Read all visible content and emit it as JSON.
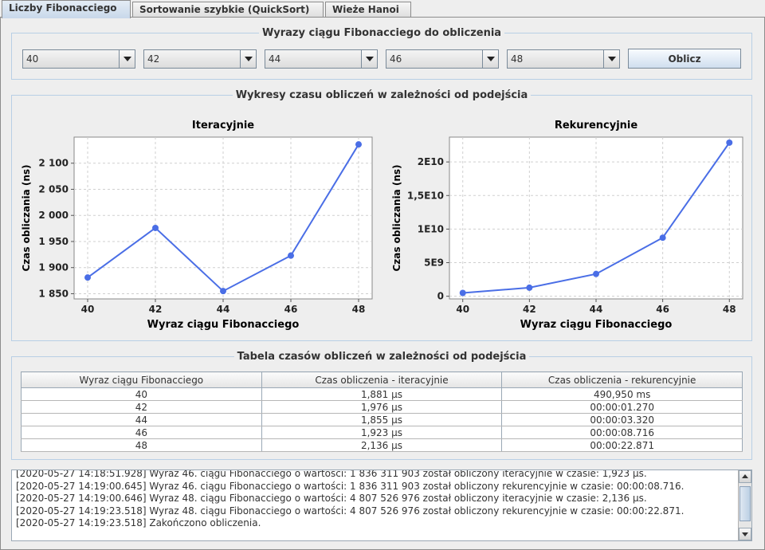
{
  "tabs": [
    {
      "label": "Liczby Fibonacciego",
      "active": true
    },
    {
      "label": "Sortowanie szybkie (QuickSort)",
      "active": false
    },
    {
      "label": "Wieże Hanoi",
      "active": false
    }
  ],
  "input_group": {
    "title": "Wyrazy ciągu Fibonacciego do obliczenia",
    "combos": [
      "40",
      "42",
      "44",
      "46",
      "48"
    ],
    "button_label": "Oblicz"
  },
  "charts_group": {
    "title": "Wykresy czasu obliczeń w zależności od podejścia"
  },
  "chart_data": [
    {
      "type": "line",
      "title": "Iteracyjnie",
      "xlabel": "Wyraz ciągu Fibonacciego",
      "ylabel": "Czas obliczania (ns)",
      "x": [
        40,
        42,
        44,
        46,
        48
      ],
      "series": [
        {
          "values": [
            1881,
            1976,
            1855,
            1923,
            2136
          ]
        }
      ],
      "xlim": [
        39.6,
        48.4
      ],
      "ylim": [
        1840,
        2150
      ],
      "xticks": [
        {
          "v": 40,
          "label": "40"
        },
        {
          "v": 42,
          "label": "42"
        },
        {
          "v": 44,
          "label": "44"
        },
        {
          "v": 46,
          "label": "46"
        },
        {
          "v": 48,
          "label": "48"
        }
      ],
      "yticks": [
        {
          "v": 1850,
          "label": "1 850"
        },
        {
          "v": 1900,
          "label": "1 900"
        },
        {
          "v": 1950,
          "label": "1 950"
        },
        {
          "v": 2000,
          "label": "2 000"
        },
        {
          "v": 2050,
          "label": "2 050"
        },
        {
          "v": 2100,
          "label": "2 100"
        }
      ],
      "grid": true,
      "color": "#4a6ee6"
    },
    {
      "type": "line",
      "title": "Rekurencyjnie",
      "xlabel": "Wyraz ciągu Fibonacciego",
      "ylabel": "Czas obliczania (ns)",
      "x": [
        40,
        42,
        44,
        46,
        48
      ],
      "series": [
        {
          "values": [
            490950000,
            1270000000,
            3320000000,
            8716000000,
            22871000000
          ]
        }
      ],
      "xlim": [
        39.6,
        48.4
      ],
      "ylim": [
        -400000000,
        23700000000
      ],
      "xticks": [
        {
          "v": 40,
          "label": "40"
        },
        {
          "v": 42,
          "label": "42"
        },
        {
          "v": 44,
          "label": "44"
        },
        {
          "v": 46,
          "label": "46"
        },
        {
          "v": 48,
          "label": "48"
        }
      ],
      "yticks": [
        {
          "v": 0,
          "label": "0"
        },
        {
          "v": 5000000000,
          "label": "5E9"
        },
        {
          "v": 10000000000,
          "label": "1E10"
        },
        {
          "v": 15000000000,
          "label": "1,5E10"
        },
        {
          "v": 20000000000,
          "label": "2E10"
        }
      ],
      "grid": true,
      "color": "#4a6ee6"
    }
  ],
  "table_group": {
    "title": "Tabela czasów obliczeń w zależności od podejścia",
    "headers": [
      "Wyraz ciągu Fibonacciego",
      "Czas obliczenia - iteracyjnie",
      "Czas obliczenia - rekurencyjnie"
    ],
    "rows": [
      [
        "40",
        "1,881 µs",
        "490,950 ms"
      ],
      [
        "42",
        "1,976 µs",
        "00:00:01.270"
      ],
      [
        "44",
        "1,855 µs",
        "00:00:03.320"
      ],
      [
        "46",
        "1,923 µs",
        "00:00:08.716"
      ],
      [
        "48",
        "2,136 µs",
        "00:00:22.871"
      ]
    ]
  },
  "log": {
    "lines": [
      "[2020-05-27 14:18:51.928] Wyraz 46. ciągu Fibonacciego o wartości: 1 836 311 903 został obliczony iteracyjnie w czasie: 1,923 µs.",
      "[2020-05-27 14:19:00.645] Wyraz 46. ciągu Fibonacciego o wartości: 1 836 311 903 został obliczony rekurencyjnie w czasie: 00:00:08.716.",
      "[2020-05-27 14:19:00.646] Wyraz 48. ciągu Fibonacciego o wartości: 4 807 526 976 został obliczony iteracyjnie w czasie: 2,136 µs.",
      "[2020-05-27 14:19:23.518] Wyraz 48. ciągu Fibonacciego o wartości: 4 807 526 976 został obliczony rekurencyjnie w czasie: 00:00:22.871.",
      "[2020-05-27 14:19:23.518] Zakończono obliczenia."
    ]
  }
}
